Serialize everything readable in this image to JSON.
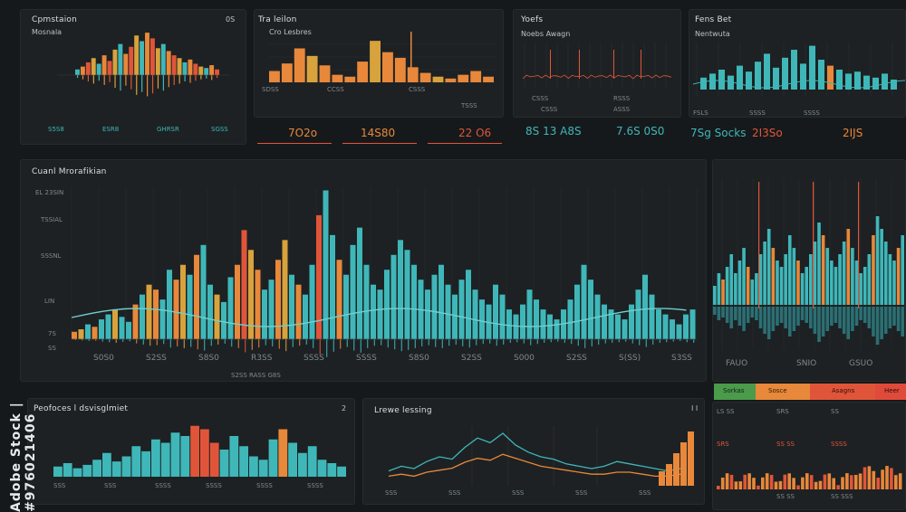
{
  "colors": {
    "teal": "#3fb7b9",
    "orange": "#e8883a",
    "red": "#e0553a",
    "gold": "#d8a23c",
    "green": "#4a9b4a",
    "blue": "#3a7fb0"
  },
  "p1": {
    "title": "Cpmstaion",
    "badge": "0S",
    "sub": "Mosnala",
    "chart_values": [
      4,
      6,
      9,
      12,
      8,
      14,
      10,
      18,
      22,
      15,
      20,
      28,
      24,
      30,
      26,
      19,
      22,
      17,
      14,
      12,
      9,
      11,
      8,
      6,
      5,
      7,
      4
    ],
    "stats": [
      "S5S8",
      "ESR8",
      "GHRSR",
      "SGSS"
    ]
  },
  "p2": {
    "title": "Tra leilon",
    "sub": "Cro Lesbres",
    "ticks": [
      "SDSS",
      "CCSS",
      "CSSS",
      "TSSS"
    ],
    "values": [
      6,
      10,
      18,
      14,
      9,
      4,
      3,
      11,
      22,
      16,
      13,
      8,
      5,
      3,
      2,
      4,
      6,
      3
    ],
    "kpi": [
      "7O2o",
      "14S80",
      "22 O6"
    ]
  },
  "p3": {
    "title": "Yoefs",
    "sub": "Noebs Awagn",
    "ticks": [
      "CSSS",
      "RSSS",
      "CSSS",
      "ASSS"
    ],
    "kpi": [
      "8S 13 A8S",
      "7.6S 0S0"
    ]
  },
  "p4": {
    "title": "Fens Bet",
    "sub": "Nentwuta",
    "ticks": [
      "FSLS",
      "SSSS",
      "SSSS"
    ],
    "kpi": [
      "7Sg Socks",
      "2I3So",
      "2IJS"
    ]
  },
  "main": {
    "title": "Cuanl Mrorafikian",
    "y_ticks": [
      "EL 23SIN",
      "TSSIAL",
      "SSSNL",
      "LIN",
      "7S",
      "SS"
    ],
    "x_ticks": [
      "S0S0",
      "S2SS",
      "S8S0",
      "R3SS",
      "SSSS",
      "SSSS",
      "S8S0",
      "S2SS",
      "S000",
      "S2SS",
      "S(SS)",
      "S3SS"
    ],
    "footer": "S2SS RASS G8S",
    "values": [
      3,
      4,
      6,
      5,
      8,
      10,
      12,
      9,
      7,
      14,
      18,
      22,
      20,
      16,
      28,
      24,
      30,
      26,
      34,
      38,
      22,
      18,
      15,
      25,
      30,
      44,
      36,
      28,
      20,
      24,
      32,
      40,
      26,
      22,
      18,
      30,
      50,
      60,
      42,
      32,
      26,
      38,
      45,
      30,
      22,
      20,
      28,
      34,
      40,
      36,
      30,
      24,
      20,
      26,
      30,
      22,
      18,
      24,
      28,
      20,
      16,
      14,
      22,
      18,
      12,
      10,
      14,
      20,
      16,
      12,
      10,
      8,
      12,
      16,
      22,
      30,
      24,
      18,
      14,
      12,
      10,
      8,
      14,
      20,
      26,
      18,
      12,
      10,
      8,
      6,
      10,
      12
    ]
  },
  "right": {
    "ticks": [
      "FAUO",
      "SNIO",
      "GSUO"
    ],
    "legend": [
      "Sorkas",
      "Sosce",
      "Asagns",
      "Heer"
    ],
    "rows": [
      "LS SS",
      "SRS",
      "SS",
      "SRS",
      "SS SS",
      "SSSS",
      "SS SS",
      "SS SSS"
    ],
    "bars": [
      3,
      5,
      4,
      6,
      8,
      5,
      7,
      9,
      6,
      4,
      5,
      8,
      10,
      12,
      9,
      7,
      6,
      8,
      11,
      9,
      7,
      5,
      6,
      8,
      10,
      13,
      11,
      9,
      7,
      6,
      8,
      10,
      12,
      9,
      7,
      5,
      6,
      8,
      11,
      14,
      12,
      10,
      8,
      7,
      9,
      11
    ]
  },
  "p5": {
    "title": "Peofoces l dsvisglmiet",
    "badge": "2",
    "ticks": [
      "SSS",
      "SSS",
      "SSSS",
      "SSSS",
      "SSSS",
      "SSSS"
    ],
    "values": [
      6,
      8,
      5,
      7,
      10,
      14,
      9,
      12,
      18,
      15,
      22,
      20,
      26,
      24,
      30,
      28,
      20,
      16,
      24,
      18,
      12,
      10,
      22,
      28,
      20,
      14,
      18,
      10,
      8,
      6
    ]
  },
  "p6": {
    "title": "Lrewe lessing",
    "badge": "I I",
    "ticks": [
      "SSS",
      "SSS",
      "SSS",
      "SSS",
      "SSS"
    ],
    "line1": [
      4,
      6,
      5,
      8,
      10,
      9,
      14,
      18,
      16,
      20,
      15,
      12,
      10,
      9,
      7,
      6,
      5,
      6,
      8,
      7,
      6,
      5,
      4,
      5
    ],
    "line2": [
      3,
      4,
      3,
      5,
      6,
      7,
      10,
      12,
      11,
      14,
      12,
      10,
      8,
      7,
      6,
      5,
      4,
      4,
      5,
      5,
      4,
      3,
      3,
      4
    ],
    "bars": [
      8,
      12,
      18,
      24,
      30
    ]
  },
  "watermark": "Adobe Stock | #976021406"
}
